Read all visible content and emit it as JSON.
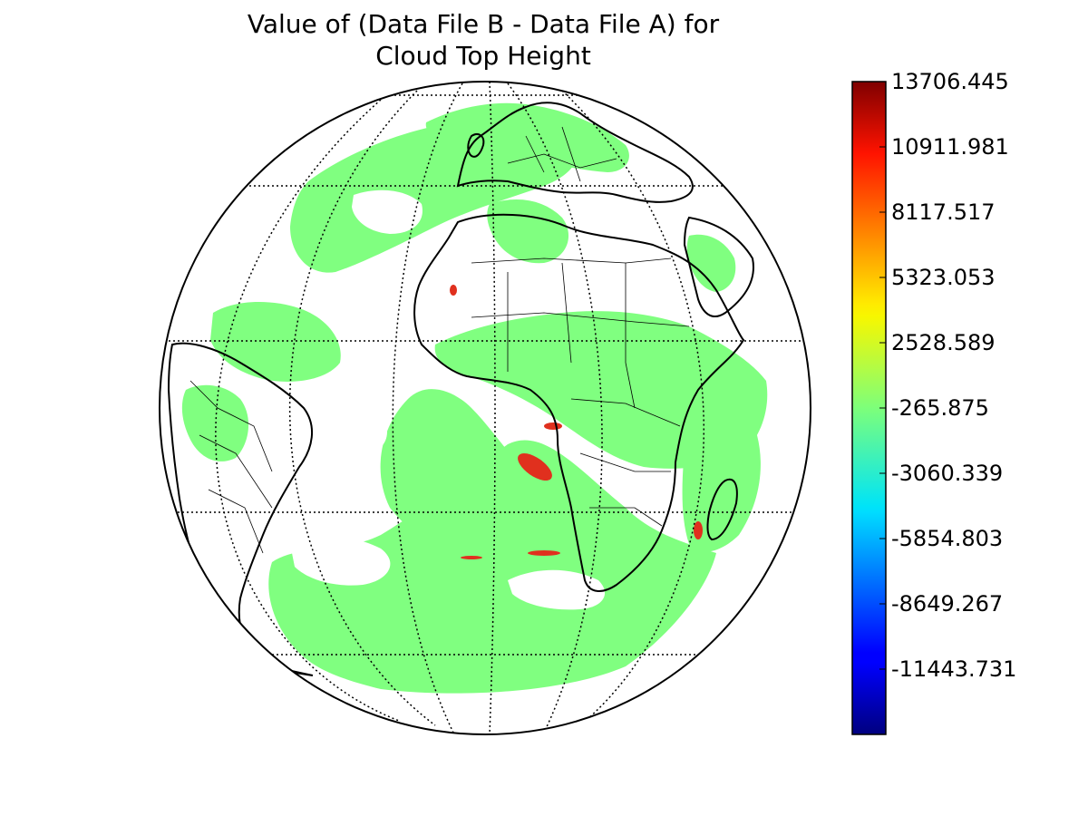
{
  "figure": {
    "title_line1": "Value of (Data File B - Data File A) for",
    "title_line2": "Cloud Top Height"
  },
  "colorbar": {
    "min": -14238.195,
    "max": 13706.445,
    "colormap": "jet",
    "ticks": [
      "13706.445",
      "10911.981",
      "8117.517",
      "5323.053",
      "2528.589",
      "-265.875",
      "-3060.339",
      "-5854.803",
      "-8649.267",
      "-11443.731"
    ]
  },
  "map": {
    "projection": "orthographic",
    "center": "Atlantic / Africa",
    "data_color": "#80ff80",
    "graticule": "dotted",
    "coastlines": true,
    "country_borders": true
  },
  "colors": {
    "data_green": "#80ff80",
    "hotspot_red": "#e0301e",
    "outline": "#000000"
  }
}
